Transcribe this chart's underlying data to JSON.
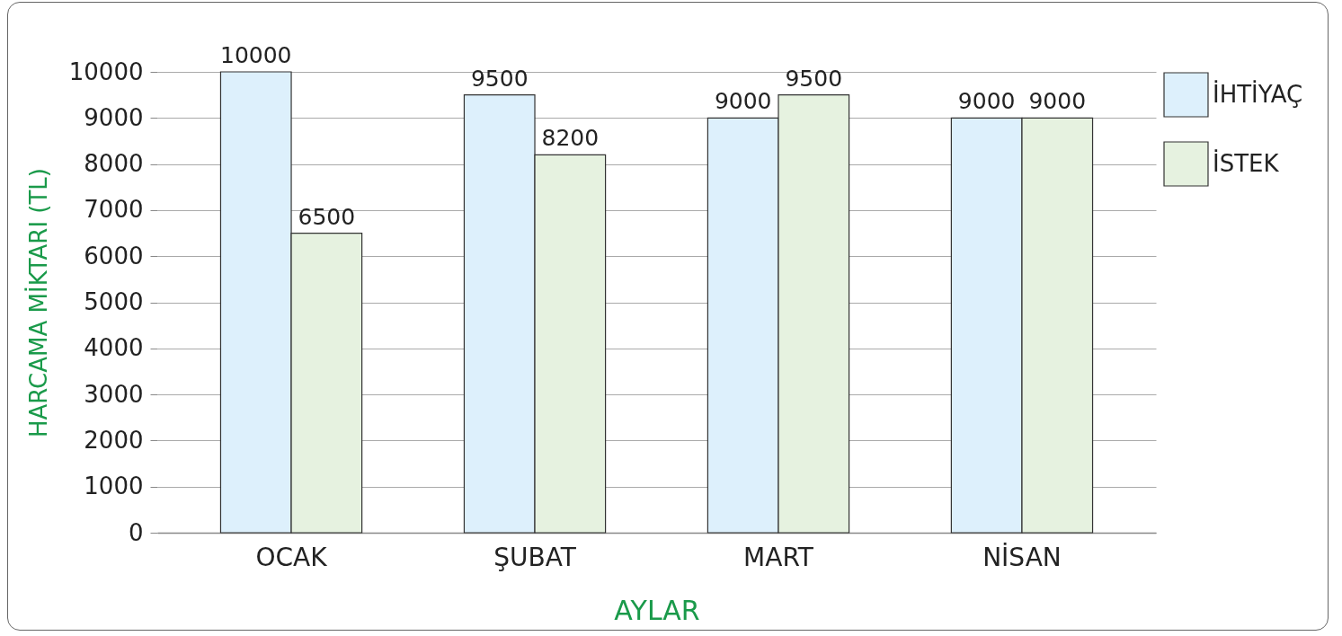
{
  "chart_data": {
    "type": "bar",
    "xlabel": "AYLAR",
    "ylabel": "HARCAMA MİKTARI (TL)",
    "categories": [
      "OCAK",
      "ŞUBAT",
      "MART",
      "NİSAN"
    ],
    "series": [
      {
        "name": "İHTİYAÇ",
        "color": "#ddf0fc",
        "values": [
          10000,
          9500,
          9000,
          9000
        ]
      },
      {
        "name": "İSTEK",
        "color": "#e6f2e0",
        "values": [
          6500,
          8200,
          9500,
          9000
        ]
      }
    ],
    "ylim": [
      0,
      10000
    ],
    "yticks": [
      0,
      1000,
      2000,
      3000,
      4000,
      5000,
      6000,
      7000,
      8000,
      9000,
      10000
    ],
    "grid": "y",
    "legend": "right",
    "data_labels": true
  }
}
